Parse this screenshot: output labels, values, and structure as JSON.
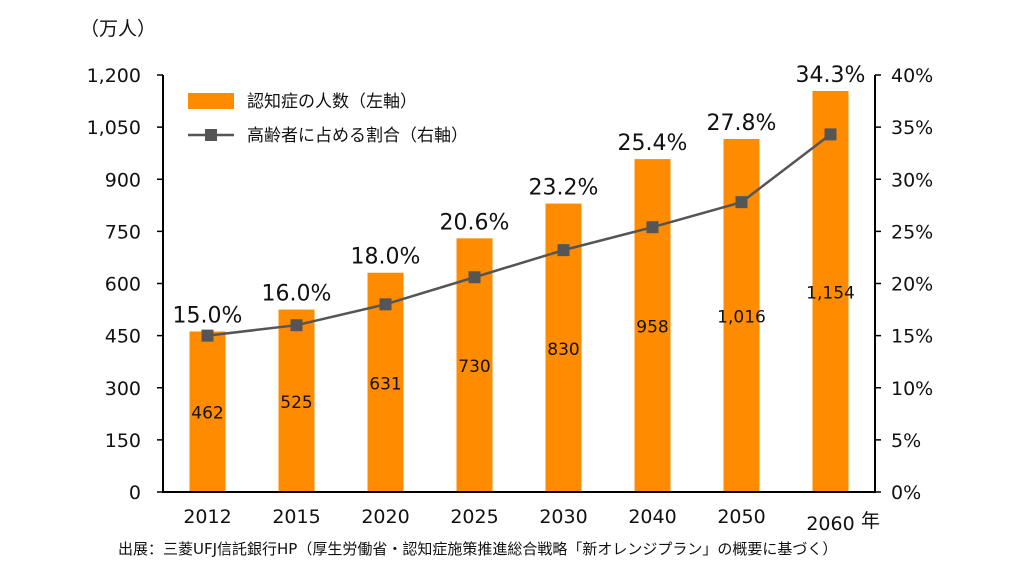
{
  "chart_data": {
    "type": "bar+line",
    "categories": [
      "2012",
      "2015",
      "2020",
      "2025",
      "2030",
      "2040",
      "2050",
      "2060"
    ],
    "series": [
      {
        "name": "認知症の人数（左軸）",
        "type": "bar",
        "axis": "left",
        "values": [
          462,
          525,
          631,
          730,
          830,
          958,
          1016,
          1154
        ],
        "labels": [
          "462",
          "525",
          "631",
          "730",
          "830",
          "958",
          "1,016",
          "1,154"
        ],
        "color": "#ff8c00"
      },
      {
        "name": "高齢者に占める割合（右軸）",
        "type": "line",
        "axis": "right",
        "values": [
          15.0,
          16.0,
          18.0,
          20.6,
          23.2,
          25.4,
          27.8,
          34.3
        ],
        "labels": [
          "15.0%",
          "16.0%",
          "18.0%",
          "20.6%",
          "23.2%",
          "25.4%",
          "27.8%",
          "34.3%"
        ],
        "color": "#555555",
        "marker": "square"
      }
    ],
    "left_axis": {
      "unit": "（万人）",
      "ylim": [
        0,
        1200
      ],
      "ticks": [
        0,
        150,
        300,
        450,
        600,
        750,
        900,
        1050,
        1200
      ],
      "tick_labels": [
        "0",
        "150",
        "300",
        "450",
        "600",
        "750",
        "900",
        "1,050",
        "1,200"
      ]
    },
    "right_axis": {
      "ylim": [
        0,
        40
      ],
      "ticks": [
        0,
        5,
        10,
        15,
        20,
        25,
        30,
        35,
        40
      ],
      "tick_labels": [
        "0%",
        "5%",
        "10%",
        "15%",
        "20%",
        "25%",
        "30%",
        "35%",
        "40%"
      ]
    },
    "x_unit": "年",
    "legend_position": "top-left",
    "grid": false
  },
  "source": "出展：三菱UFJ信託銀行HP（厚生労働省・認知症施策推進総合戦略「新オレンジプラン」の概要に基づく）"
}
